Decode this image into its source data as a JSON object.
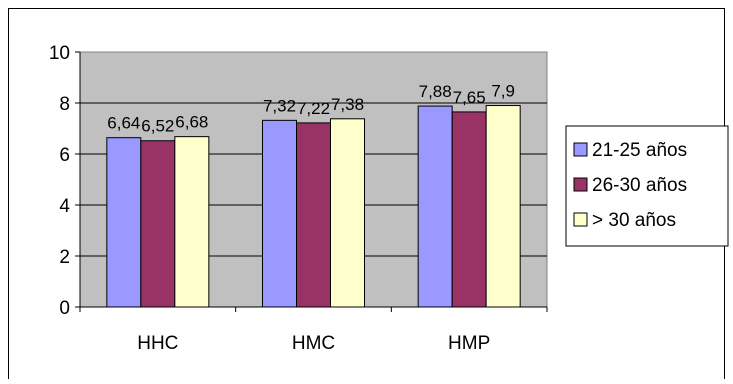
{
  "chart_data": {
    "type": "bar",
    "categories": [
      "HHC",
      "HMC",
      "HMP"
    ],
    "series": [
      {
        "name": "21-25 años",
        "color": "#9999ff",
        "values": [
          6.64,
          7.32,
          7.88
        ],
        "labels": [
          "6,64",
          "7,32",
          "7,88"
        ]
      },
      {
        "name": "26-30 años",
        "color": "#993366",
        "values": [
          6.52,
          7.22,
          7.65
        ],
        "labels": [
          "6,52",
          "7,22",
          "7,65"
        ]
      },
      {
        "name": "> 30 años",
        "color": "#ffffcc",
        "values": [
          6.68,
          7.38,
          7.9
        ],
        "labels": [
          "6,68",
          "7,38",
          "7,9"
        ]
      }
    ],
    "ylim": [
      0,
      10
    ],
    "yticks": [
      "0",
      "2",
      "4",
      "6",
      "8",
      "10"
    ],
    "plot_background": "#c0c0c0",
    "grid": true,
    "legend_position": "right"
  }
}
